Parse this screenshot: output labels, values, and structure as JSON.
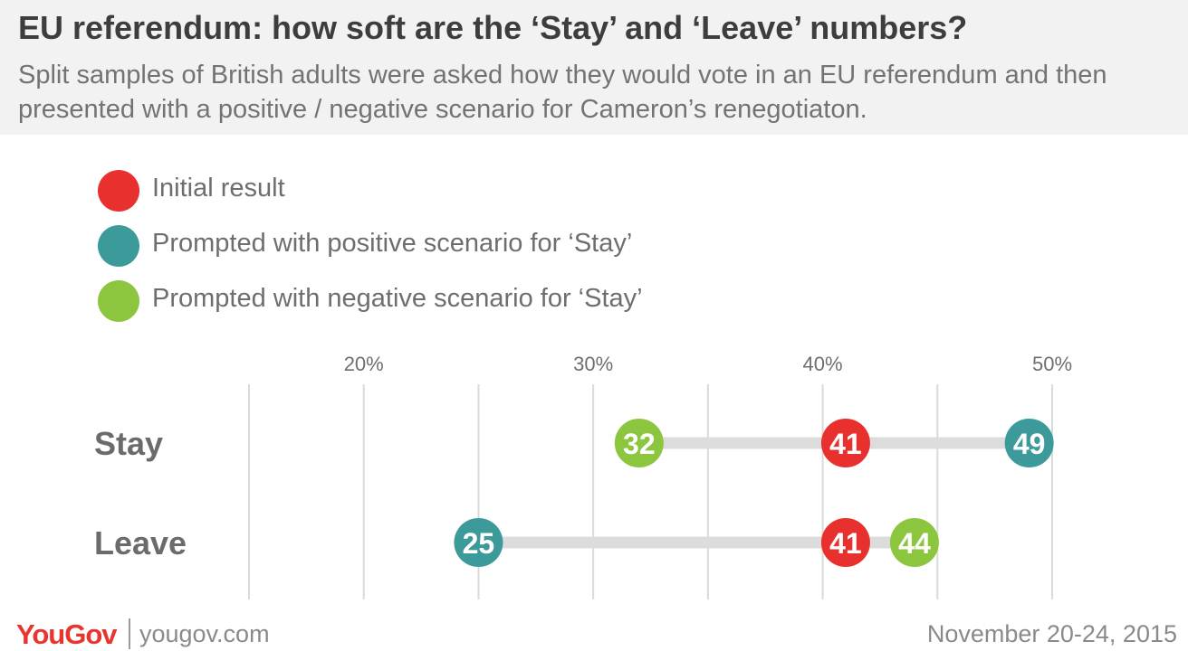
{
  "header": {
    "title": "EU referendum: how soft are the ‘Stay’ and ‘Leave’ numbers?",
    "subtitle": "Split samples of British adults were asked how they would vote in an EU referendum and then presented with a positive / negative scenario for Cameron’s renegotiaton."
  },
  "legend": {
    "items": [
      {
        "label": "Initial result",
        "color": "#e8302e"
      },
      {
        "label": "Prompted with positive scenario for ‘Stay’",
        "color": "#3d9a9b"
      },
      {
        "label": "Prompted with negative scenario for ‘Stay’",
        "color": "#8cc63e"
      }
    ]
  },
  "chart_data": {
    "type": "dot-range",
    "x_ticks": [
      20,
      30,
      40,
      50
    ],
    "x_tick_labels": [
      "20%",
      "30%",
      "40%",
      "50%"
    ],
    "xlim": [
      15,
      50
    ],
    "grid": true,
    "bar_color": "#dcdcdc",
    "series": [
      {
        "name": "Initial result",
        "color": "#e8302e"
      },
      {
        "name": "Prompted with positive scenario for ‘Stay’",
        "color": "#3d9a9b"
      },
      {
        "name": "Prompted with negative scenario for ‘Stay’",
        "color": "#8cc63e"
      }
    ],
    "categories": [
      {
        "label": "Stay",
        "values": [
          41,
          49,
          32
        ]
      },
      {
        "label": "Leave",
        "values": [
          41,
          25,
          44
        ]
      }
    ]
  },
  "footer": {
    "logo": "YouGov",
    "site": "yougov.com",
    "date": "November 20-24, 2015"
  }
}
